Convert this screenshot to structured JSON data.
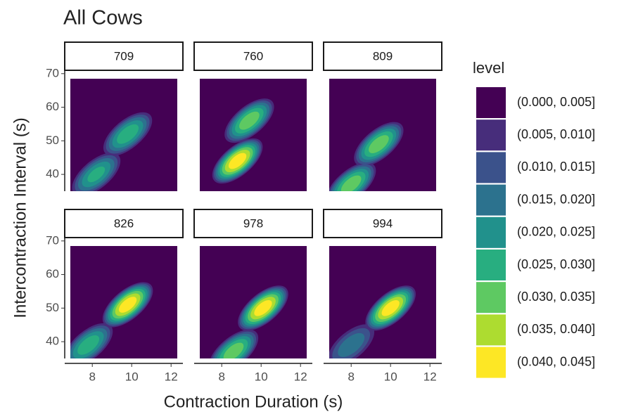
{
  "chart_data": {
    "type": "density-facets",
    "title": "All Cows",
    "x_label": "Contraction Duration (s)",
    "y_label": "Intercontraction Interval (s)",
    "xlim": [
      6.6,
      12.6
    ],
    "xticks": [
      8,
      10,
      12
    ],
    "ylim": [
      35,
      71
    ],
    "yticks": [
      40,
      50,
      60,
      70
    ],
    "facets": [
      {
        "label": "709",
        "peaks": [
          {
            "x": 9.8,
            "y": 52,
            "z": 0.03
          },
          {
            "x": 8.2,
            "y": 40,
            "z": 0.028
          }
        ]
      },
      {
        "label": "760",
        "peaks": [
          {
            "x": 8.8,
            "y": 44,
            "z": 0.045
          },
          {
            "x": 9.4,
            "y": 56,
            "z": 0.035
          }
        ]
      },
      {
        "label": "809",
        "peaks": [
          {
            "x": 9.4,
            "y": 49,
            "z": 0.035
          },
          {
            "x": 8.0,
            "y": 37,
            "z": 0.035
          }
        ]
      },
      {
        "label": "826",
        "peaks": [
          {
            "x": 9.8,
            "y": 51,
            "z": 0.045
          },
          {
            "x": 7.8,
            "y": 39,
            "z": 0.03
          }
        ]
      },
      {
        "label": "978",
        "peaks": [
          {
            "x": 10.1,
            "y": 50,
            "z": 0.045
          },
          {
            "x": 8.6,
            "y": 37,
            "z": 0.035
          }
        ]
      },
      {
        "label": "994",
        "peaks": [
          {
            "x": 10.0,
            "y": 50,
            "z": 0.045
          },
          {
            "x": 8.0,
            "y": 39,
            "z": 0.02
          }
        ]
      }
    ],
    "legend": {
      "title": "level",
      "items": [
        {
          "lower": 0,
          "upper": 0.005,
          "label": "(0.000, 0.005]",
          "color": "#440154"
        },
        {
          "lower": 0.005,
          "upper": 0.01,
          "label": "(0.005, 0.010]",
          "color": "#472d7b"
        },
        {
          "lower": 0.01,
          "upper": 0.015,
          "label": "(0.010, 0.015]",
          "color": "#3b528b"
        },
        {
          "lower": 0.015,
          "upper": 0.02,
          "label": "(0.015, 0.020]",
          "color": "#2c728e"
        },
        {
          "lower": 0.02,
          "upper": 0.025,
          "label": "(0.020, 0.025]",
          "color": "#21918c"
        },
        {
          "lower": 0.025,
          "upper": 0.03,
          "label": "(0.025, 0.030]",
          "color": "#28ae80"
        },
        {
          "lower": 0.03,
          "upper": 0.035,
          "label": "(0.030, 0.035]",
          "color": "#5ec962"
        },
        {
          "lower": 0.035,
          "upper": 0.04,
          "label": "(0.035, 0.040]",
          "color": "#addc30"
        },
        {
          "lower": 0.04,
          "upper": 0.045,
          "label": "(0.040, 0.045]",
          "color": "#fde725"
        }
      ]
    }
  }
}
